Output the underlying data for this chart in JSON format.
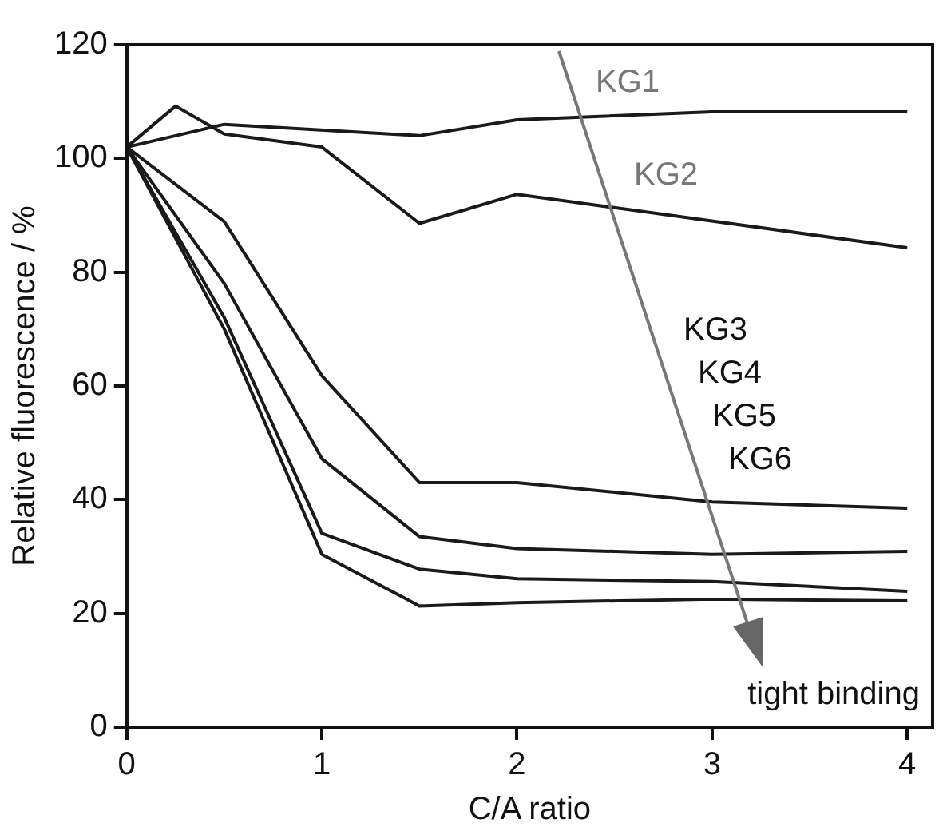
{
  "chart_data": {
    "type": "line",
    "xlabel": "C/A ratio",
    "ylabel": "Relative fluorescence / %",
    "xlim": [
      0,
      4.13
    ],
    "xticks": [
      0,
      1,
      2,
      3,
      4
    ],
    "ylim": [
      0,
      120
    ],
    "yticks": [
      0,
      20,
      40,
      60,
      80,
      100,
      120
    ],
    "grid": false,
    "legend": false,
    "marker": "none",
    "line_style": "solid",
    "series": [
      {
        "name": "KG1",
        "color": "#1a1a1a",
        "x": [
          0,
          0.5,
          1.5,
          2,
          3,
          4
        ],
        "values": [
          102,
          106,
          104,
          106.8,
          108.2,
          108.2
        ]
      },
      {
        "name": "KG2",
        "color": "#1a1a1a",
        "x": [
          0,
          0.25,
          0.5,
          1,
          1.5,
          2,
          4
        ],
        "values": [
          102,
          109.2,
          104.3,
          102,
          88.6,
          93.7,
          84.3
        ]
      },
      {
        "color": "#1a1a1a",
        "x": [
          0,
          0.5,
          1,
          1.5,
          2,
          3,
          4
        ],
        "values": [
          102,
          88.9,
          61.8,
          43,
          43,
          39.6,
          38.5
        ]
      },
      {
        "color": "#1a1a1a",
        "x": [
          0,
          0.5,
          1,
          1.5,
          2,
          3,
          4
        ],
        "values": [
          102,
          78,
          47.2,
          33.5,
          31.4,
          30.4,
          30.9
        ]
      },
      {
        "color": "#1a1a1a",
        "x": [
          0,
          0.5,
          1,
          1.5,
          2,
          3,
          4
        ],
        "values": [
          102,
          72,
          34.1,
          27.8,
          26.1,
          25.6,
          23.9
        ]
      },
      {
        "color": "#1a1a1a",
        "x": [
          0,
          0.5,
          1,
          1.5,
          2,
          3,
          4
        ],
        "values": [
          102,
          70,
          30.4,
          21.3,
          21.9,
          22.5,
          22.2
        ]
      }
    ],
    "annotations": [
      "KG3",
      "KG4",
      "KG5",
      "KG6",
      "tight binding"
    ]
  }
}
